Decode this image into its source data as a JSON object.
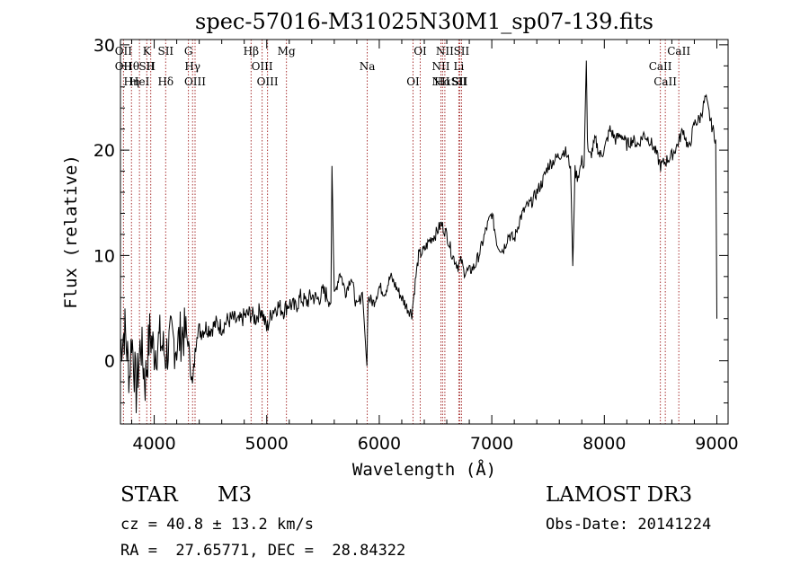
{
  "chart_data": {
    "type": "line",
    "title": "spec-57016-M31025N30M1_sp07-139.fits",
    "xlabel": "Wavelength (Å)",
    "ylabel": "Flux (relative)",
    "xlim": [
      3700,
      9100
    ],
    "ylim": [
      -6,
      30.5
    ],
    "xticks": [
      4000,
      5000,
      6000,
      7000,
      8000,
      9000
    ],
    "yticks": [
      0,
      10,
      20,
      30
    ],
    "colors": {
      "spectrum": "#000000",
      "lines": "#a83232"
    },
    "spectral_lines": [
      {
        "wave": 3727,
        "labels": [
          "OII",
          "OII"
        ]
      },
      {
        "wave": 3798,
        "labels": [
          "Hθ",
          "Hη"
        ]
      },
      {
        "wave": 3869,
        "labels": [
          "HeI"
        ]
      },
      {
        "wave": 3934,
        "labels": [
          "K",
          "SII"
        ]
      },
      {
        "wave": 3969,
        "labels": [
          "H"
        ]
      },
      {
        "wave": 4102,
        "labels": [
          "Hδ",
          "SII"
        ]
      },
      {
        "wave": 4304,
        "labels": [
          "G"
        ]
      },
      {
        "wave": 4341,
        "labels": [
          "Hγ"
        ]
      },
      {
        "wave": 4363,
        "labels": [
          "OIII"
        ]
      },
      {
        "wave": 4861,
        "labels": [
          "Hβ"
        ]
      },
      {
        "wave": 4959,
        "labels": [
          "OIII"
        ]
      },
      {
        "wave": 5007,
        "labels": [
          "OIII"
        ]
      },
      {
        "wave": 5175,
        "labels": [
          "Mg"
        ]
      },
      {
        "wave": 5893,
        "labels": [
          "Na"
        ]
      },
      {
        "wave": 6300,
        "labels": [
          "OI"
        ]
      },
      {
        "wave": 6364,
        "labels": [
          "OI"
        ]
      },
      {
        "wave": 6548,
        "labels": [
          "NII",
          "NII"
        ]
      },
      {
        "wave": 6563,
        "labels": [
          "Hα"
        ]
      },
      {
        "wave": 6583,
        "labels": [
          "NII"
        ]
      },
      {
        "wave": 6707,
        "labels": [
          "Li",
          "SII"
        ]
      },
      {
        "wave": 6716,
        "labels": [
          "SII"
        ]
      },
      {
        "wave": 6731,
        "labels": [
          "SII"
        ]
      },
      {
        "wave": 8498,
        "labels": [
          "CaII"
        ]
      },
      {
        "wave": 8542,
        "labels": [
          "CaII"
        ]
      },
      {
        "wave": 8662,
        "labels": [
          "CaII"
        ]
      }
    ],
    "series": [
      {
        "name": "spectrum",
        "x": [
          3700,
          3740,
          3780,
          3800,
          3840,
          3880,
          3920,
          3960,
          4000,
          4050,
          4100,
          4150,
          4200,
          4250,
          4300,
          4340,
          4380,
          4420,
          4460,
          4500,
          4550,
          4600,
          4650,
          4700,
          4750,
          4800,
          4850,
          4900,
          4950,
          5000,
          5050,
          5100,
          5150,
          5200,
          5250,
          5300,
          5350,
          5400,
          5450,
          5500,
          5540,
          5570,
          5580,
          5600,
          5650,
          5700,
          5750,
          5800,
          5850,
          5890,
          5900,
          5950,
          6000,
          6050,
          6100,
          6150,
          6200,
          6250,
          6290,
          6320,
          6350,
          6400,
          6450,
          6500,
          6550,
          6600,
          6650,
          6700,
          6730,
          6750,
          6800,
          6850,
          6900,
          6950,
          7000,
          7050,
          7100,
          7150,
          7200,
          7250,
          7300,
          7350,
          7400,
          7450,
          7500,
          7550,
          7600,
          7650,
          7700,
          7720,
          7740,
          7760,
          7780,
          7800,
          7820,
          7840,
          7850,
          7860,
          7880,
          7920,
          7960,
          8000,
          8050,
          8100,
          8150,
          8200,
          8250,
          8300,
          8350,
          8400,
          8450,
          8500,
          8550,
          8600,
          8650,
          8700,
          8750,
          8800,
          8850,
          8900,
          8950,
          8990,
          9000
        ],
        "y": [
          1.5,
          3.0,
          -1.5,
          2.5,
          -3.0,
          1.8,
          -2.0,
          2.5,
          1.0,
          2.0,
          0.5,
          2.0,
          1.5,
          2.8,
          2.0,
          -2.5,
          3.0,
          2.8,
          3.2,
          3.0,
          3.5,
          3.2,
          3.8,
          4.0,
          3.6,
          4.2,
          4.5,
          4.0,
          5.0,
          3.0,
          4.8,
          5.2,
          4.8,
          5.5,
          5.0,
          6.0,
          5.5,
          6.2,
          5.8,
          6.5,
          6.2,
          5.5,
          18.5,
          6.0,
          8.5,
          6.5,
          8.0,
          5.0,
          6.5,
          -0.5,
          6.0,
          5.5,
          7.0,
          6.5,
          8.0,
          7.0,
          6.0,
          5.0,
          4.5,
          7.5,
          10.0,
          10.5,
          11.5,
          12.0,
          13.0,
          12.0,
          10.0,
          9.0,
          9.5,
          8.5,
          8.5,
          9.0,
          10.5,
          12.5,
          14.0,
          11.0,
          10.5,
          12.0,
          11.5,
          13.5,
          14.5,
          15.0,
          16.0,
          17.0,
          18.5,
          19.0,
          19.5,
          20.0,
          18.5,
          9.0,
          18.0,
          17.5,
          18.0,
          19.0,
          18.5,
          28.5,
          21.0,
          19.5,
          19.5,
          21.0,
          19.5,
          20.0,
          22.0,
          21.0,
          21.5,
          20.5,
          21.0,
          20.5,
          21.5,
          21.0,
          20.0,
          18.5,
          19.0,
          19.5,
          20.5,
          22.0,
          20.0,
          22.5,
          23.0,
          25.0,
          22.5,
          21.0,
          4.0
        ]
      }
    ]
  },
  "info": {
    "object_class": "STAR",
    "subclass": "M3",
    "survey": "LAMOST DR3",
    "cz": "cz = 40.8 ± 13.2 km/s",
    "obs_date": "Obs-Date: 20141224",
    "coords": "RA =  27.65771, DEC =  28.84322"
  }
}
